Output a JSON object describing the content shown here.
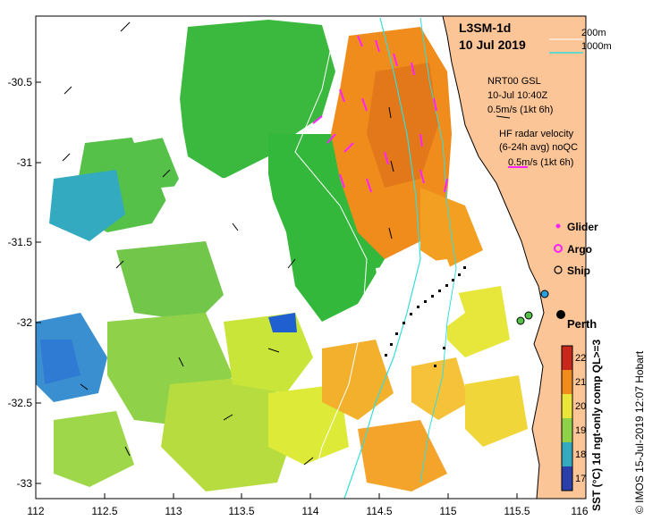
{
  "header": {
    "product": "L3SM-1d",
    "date": "10 Jul 2019"
  },
  "bathymetry_legend": {
    "contour_200": "200m",
    "contour_1000": "1000m",
    "contour_1000_color": "#33dddd"
  },
  "current_legend": {
    "gsl_title": "NRT00 GSL",
    "gsl_time": "10-Jul 10:40Z",
    "gsl_scale": "0.5m/s (1kt 6h)",
    "radar_title": "HF radar velocity",
    "radar_sub": "(6-24h avg) noQC",
    "radar_scale": "0.5m/s (1kt 6h)",
    "radar_color": "#ff22ff"
  },
  "symbol_legend": [
    {
      "label": "Glider",
      "color": "#ff22ff"
    },
    {
      "label": "Argo",
      "color": "#ff22ff"
    },
    {
      "label": "Ship",
      "color": "#000000"
    }
  ],
  "place": {
    "name": "Perth"
  },
  "axes": {
    "x_ticks": [
      "112",
      "112.5",
      "113",
      "113.5",
      "114",
      "114.5",
      "115",
      "115.5",
      "116"
    ],
    "y_ticks": [
      "-30.5",
      "-31",
      "-31.5",
      "-32",
      "-32.5",
      "-33"
    ],
    "lon_range": [
      112,
      116
    ],
    "lat_range": [
      -33.1,
      -30.1
    ]
  },
  "colorbar": {
    "label": "SST (°C) 1d ngt-only comp QL>=3",
    "ticks": [
      "17",
      "18",
      "19",
      "20",
      "21",
      "22"
    ],
    "range": [
      16.5,
      22.5
    ]
  },
  "credit": "© IMOS 15-Jul-2019 12:07 Hobart",
  "colors": {
    "land": "#fcc597",
    "contour": "#33dddd"
  }
}
